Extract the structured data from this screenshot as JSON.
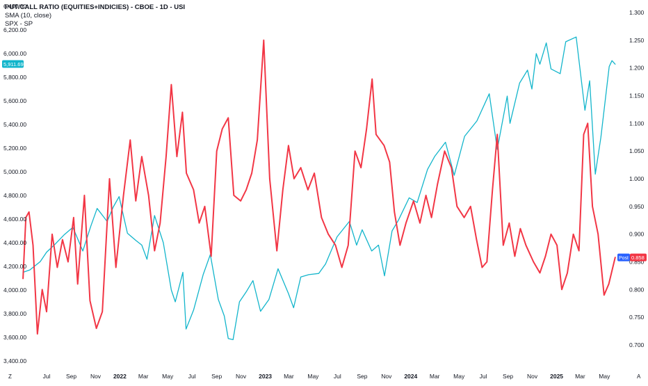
{
  "legend": {
    "title": "PUT/CALL RATIO (EQUITIES+INDICIES) - CBOE - 1D - USI",
    "sma": "SMA (10, close)",
    "spx": "SPX - SP"
  },
  "colors": {
    "ratio_line": "#f23645",
    "spx_line": "#12b5cb",
    "axis_text": "#131722",
    "spx_badge": "#12b5cb",
    "post_badge": "#2962ff",
    "ratio_badge": "#f23645"
  },
  "badges": {
    "spx_current": "5,911.69",
    "post_label": "Post",
    "ratio_current": "0.858"
  },
  "corner_labels": {
    "left": "Z",
    "right": "A"
  },
  "chart_data": {
    "type": "line",
    "grid": false,
    "legend_position": "top-left",
    "x_tick_labels": [
      "Jul",
      "Sep",
      "Nov",
      "2022",
      "Mar",
      "May",
      "Jul",
      "Sep",
      "Nov",
      "2023",
      "Mar",
      "May",
      "Jul",
      "Sep",
      "Nov",
      "2024",
      "Mar",
      "May",
      "Jul",
      "Sep",
      "Nov",
      "2025",
      "Mar",
      "May"
    ],
    "left_axis": {
      "ylim": [
        3400,
        6400
      ],
      "ticks": [
        "3,400.00",
        "3,600.00",
        "3,800.00",
        "4,000.00",
        "4,200.00",
        "4,400.00",
        "4,600.00",
        "4,800.00",
        "5,000.00",
        "5,200.00",
        "5,400.00",
        "5,600.00",
        "5,800.00",
        "6,000.00",
        "6,200.00",
        "6,400.00"
      ]
    },
    "right_axis": {
      "ylim": [
        0.675,
        1.325
      ],
      "ticks": [
        "0.700",
        "0.750",
        "0.800",
        "0.850",
        "0.900",
        "0.950",
        "1.000",
        "1.050",
        "1.100",
        "1.150",
        "1.200",
        "1.250",
        "1.300"
      ]
    },
    "x_range": [
      "2021-05-01",
      "2025-06-20"
    ],
    "series": [
      {
        "name": "SPX",
        "axis": "left",
        "color": "#12b5cb",
        "points": [
          [
            "2021-05-03",
            4150
          ],
          [
            "2021-05-20",
            4170
          ],
          [
            "2021-06-15",
            4240
          ],
          [
            "2021-07-01",
            4320
          ],
          [
            "2021-07-20",
            4380
          ],
          [
            "2021-08-15",
            4470
          ],
          [
            "2021-09-05",
            4530
          ],
          [
            "2021-09-30",
            4330
          ],
          [
            "2021-10-20",
            4540
          ],
          [
            "2021-11-05",
            4690
          ],
          [
            "2021-11-30",
            4580
          ],
          [
            "2021-12-15",
            4700
          ],
          [
            "2021-12-30",
            4790
          ],
          [
            "2022-01-20",
            4480
          ],
          [
            "2022-02-10",
            4420
          ],
          [
            "2022-02-25",
            4380
          ],
          [
            "2022-03-10",
            4260
          ],
          [
            "2022-03-29",
            4630
          ],
          [
            "2022-04-20",
            4400
          ],
          [
            "2022-05-10",
            4000
          ],
          [
            "2022-05-20",
            3900
          ],
          [
            "2022-06-08",
            4150
          ],
          [
            "2022-06-16",
            3670
          ],
          [
            "2022-07-05",
            3830
          ],
          [
            "2022-07-29",
            4130
          ],
          [
            "2022-08-16",
            4300
          ],
          [
            "2022-09-05",
            3920
          ],
          [
            "2022-09-20",
            3780
          ],
          [
            "2022-09-30",
            3590
          ],
          [
            "2022-10-12",
            3580
          ],
          [
            "2022-10-28",
            3900
          ],
          [
            "2022-11-15",
            3990
          ],
          [
            "2022-12-01",
            4080
          ],
          [
            "2022-12-20",
            3820
          ],
          [
            "2023-01-10",
            3920
          ],
          [
            "2023-02-02",
            4180
          ],
          [
            "2023-02-28",
            3970
          ],
          [
            "2023-03-13",
            3850
          ],
          [
            "2023-03-31",
            4110
          ],
          [
            "2023-04-20",
            4130
          ],
          [
            "2023-05-15",
            4140
          ],
          [
            "2023-06-01",
            4220
          ],
          [
            "2023-06-30",
            4450
          ],
          [
            "2023-07-31",
            4580
          ],
          [
            "2023-08-18",
            4380
          ],
          [
            "2023-09-01",
            4510
          ],
          [
            "2023-09-25",
            4330
          ],
          [
            "2023-10-12",
            4380
          ],
          [
            "2023-10-27",
            4120
          ],
          [
            "2023-11-15",
            4500
          ],
          [
            "2023-12-01",
            4590
          ],
          [
            "2023-12-28",
            4780
          ],
          [
            "2024-01-17",
            4740
          ],
          [
            "2024-02-12",
            5020
          ],
          [
            "2024-03-01",
            5130
          ],
          [
            "2024-03-28",
            5250
          ],
          [
            "2024-04-19",
            4970
          ],
          [
            "2024-05-15",
            5300
          ],
          [
            "2024-06-15",
            5430
          ],
          [
            "2024-07-16",
            5660
          ],
          [
            "2024-08-05",
            5190
          ],
          [
            "2024-08-30",
            5640
          ],
          [
            "2024-09-06",
            5410
          ],
          [
            "2024-09-30",
            5750
          ],
          [
            "2024-10-20",
            5860
          ],
          [
            "2024-10-31",
            5700
          ],
          [
            "2024-11-11",
            6000
          ],
          [
            "2024-11-20",
            5910
          ],
          [
            "2024-12-06",
            6090
          ],
          [
            "2024-12-18",
            5870
          ],
          [
            "2025-01-10",
            5830
          ],
          [
            "2025-01-24",
            6100
          ],
          [
            "2025-02-19",
            6140
          ],
          [
            "2025-03-13",
            5520
          ],
          [
            "2025-03-25",
            5770
          ],
          [
            "2025-04-08",
            4980
          ],
          [
            "2025-04-22",
            5290
          ],
          [
            "2025-05-13",
            5890
          ],
          [
            "2025-05-20",
            5940
          ],
          [
            "2025-05-28",
            5910
          ]
        ]
      },
      {
        "name": "SMA (10, close)",
        "axis": "right",
        "color": "#f23645",
        "points": [
          [
            "2021-05-03",
            0.82
          ],
          [
            "2021-05-10",
            0.93
          ],
          [
            "2021-05-18",
            0.94
          ],
          [
            "2021-05-28",
            0.88
          ],
          [
            "2021-06-08",
            0.72
          ],
          [
            "2021-06-20",
            0.8
          ],
          [
            "2021-07-01",
            0.76
          ],
          [
            "2021-07-15",
            0.9
          ],
          [
            "2021-07-28",
            0.84
          ],
          [
            "2021-08-10",
            0.89
          ],
          [
            "2021-08-24",
            0.85
          ],
          [
            "2021-09-07",
            0.93
          ],
          [
            "2021-09-17",
            0.81
          ],
          [
            "2021-10-04",
            0.97
          ],
          [
            "2021-10-18",
            0.78
          ],
          [
            "2021-11-03",
            0.73
          ],
          [
            "2021-11-18",
            0.76
          ],
          [
            "2021-12-06",
            1.0
          ],
          [
            "2021-12-22",
            0.84
          ],
          [
            "2022-01-10",
            0.97
          ],
          [
            "2022-01-27",
            1.07
          ],
          [
            "2022-02-10",
            0.96
          ],
          [
            "2022-02-25",
            1.04
          ],
          [
            "2022-03-14",
            0.97
          ],
          [
            "2022-03-29",
            0.87
          ],
          [
            "2022-04-12",
            0.92
          ],
          [
            "2022-04-27",
            1.04
          ],
          [
            "2022-05-10",
            1.17
          ],
          [
            "2022-05-24",
            1.04
          ],
          [
            "2022-06-07",
            1.12
          ],
          [
            "2022-06-17",
            1.01
          ],
          [
            "2022-07-05",
            0.98
          ],
          [
            "2022-07-19",
            0.92
          ],
          [
            "2022-08-02",
            0.95
          ],
          [
            "2022-08-18",
            0.86
          ],
          [
            "2022-09-01",
            1.05
          ],
          [
            "2022-09-15",
            1.09
          ],
          [
            "2022-09-30",
            1.11
          ],
          [
            "2022-10-14",
            0.97
          ],
          [
            "2022-10-31",
            0.96
          ],
          [
            "2022-11-14",
            0.98
          ],
          [
            "2022-11-28",
            1.01
          ],
          [
            "2022-12-12",
            1.07
          ],
          [
            "2022-12-28",
            1.25
          ],
          [
            "2023-01-12",
            1.0
          ],
          [
            "2023-01-30",
            0.87
          ],
          [
            "2023-02-14",
            0.98
          ],
          [
            "2023-02-28",
            1.06
          ],
          [
            "2023-03-14",
            1.0
          ],
          [
            "2023-03-31",
            1.02
          ],
          [
            "2023-04-18",
            0.98
          ],
          [
            "2023-05-04",
            1.01
          ],
          [
            "2023-05-22",
            0.93
          ],
          [
            "2023-06-08",
            0.9
          ],
          [
            "2023-06-26",
            0.88
          ],
          [
            "2023-07-12",
            0.84
          ],
          [
            "2023-07-28",
            0.88
          ],
          [
            "2023-08-14",
            1.05
          ],
          [
            "2023-08-29",
            1.02
          ],
          [
            "2023-09-12",
            1.09
          ],
          [
            "2023-09-26",
            1.18
          ],
          [
            "2023-10-06",
            1.08
          ],
          [
            "2023-10-26",
            1.06
          ],
          [
            "2023-11-09",
            1.03
          ],
          [
            "2023-11-21",
            0.94
          ],
          [
            "2023-12-05",
            0.88
          ],
          [
            "2023-12-20",
            0.92
          ],
          [
            "2024-01-08",
            0.96
          ],
          [
            "2024-01-24",
            0.92
          ],
          [
            "2024-02-08",
            0.97
          ],
          [
            "2024-02-22",
            0.93
          ],
          [
            "2024-03-08",
            0.99
          ],
          [
            "2024-03-26",
            1.05
          ],
          [
            "2024-04-12",
            1.02
          ],
          [
            "2024-04-26",
            0.95
          ],
          [
            "2024-05-14",
            0.93
          ],
          [
            "2024-05-30",
            0.95
          ],
          [
            "2024-06-14",
            0.89
          ],
          [
            "2024-06-28",
            0.84
          ],
          [
            "2024-07-10",
            0.85
          ],
          [
            "2024-07-24",
            0.98
          ],
          [
            "2024-08-05",
            1.08
          ],
          [
            "2024-08-20",
            0.88
          ],
          [
            "2024-09-04",
            0.92
          ],
          [
            "2024-09-18",
            0.86
          ],
          [
            "2024-10-02",
            0.91
          ],
          [
            "2024-10-16",
            0.88
          ],
          [
            "2024-11-04",
            0.85
          ],
          [
            "2024-11-20",
            0.83
          ],
          [
            "2024-12-04",
            0.86
          ],
          [
            "2024-12-18",
            0.9
          ],
          [
            "2025-01-02",
            0.88
          ],
          [
            "2025-01-14",
            0.8
          ],
          [
            "2025-01-28",
            0.83
          ],
          [
            "2025-02-12",
            0.9
          ],
          [
            "2025-02-26",
            0.87
          ],
          [
            "2025-03-10",
            1.08
          ],
          [
            "2025-03-20",
            1.1
          ],
          [
            "2025-04-01",
            0.95
          ],
          [
            "2025-04-15",
            0.9
          ],
          [
            "2025-04-30",
            0.79
          ],
          [
            "2025-05-12",
            0.81
          ],
          [
            "2025-05-28",
            0.858
          ]
        ]
      }
    ]
  }
}
